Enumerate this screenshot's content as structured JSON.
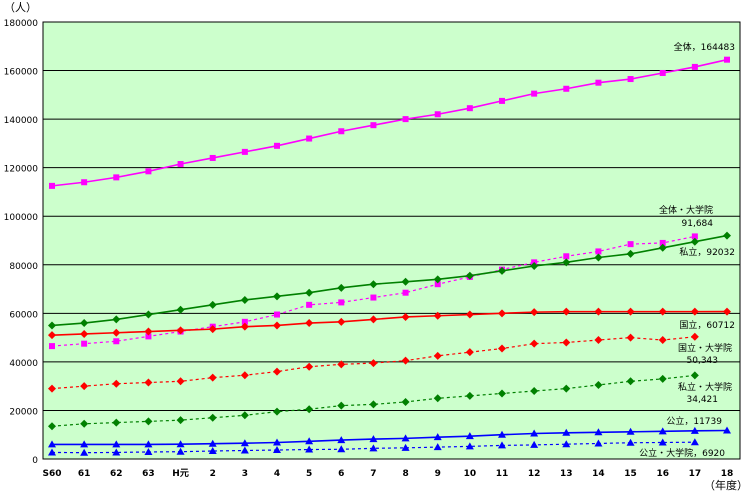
{
  "chart_data": {
    "type": "line",
    "unit_label": "（人）",
    "xlabel": "（年度）",
    "categories": [
      "S60",
      "61",
      "62",
      "63",
      "H元",
      "2",
      "3",
      "4",
      "5",
      "6",
      "7",
      "8",
      "9",
      "10",
      "11",
      "12",
      "13",
      "14",
      "15",
      "16",
      "17",
      "18"
    ],
    "ylim": [
      0,
      180000
    ],
    "yticks": [
      0,
      20000,
      40000,
      60000,
      80000,
      100000,
      120000,
      140000,
      160000,
      180000
    ],
    "grid": true,
    "plot_background": "#ccffcc",
    "series": [
      {
        "name": "全体",
        "color": "#ff00ff",
        "marker": "square",
        "dashed": false,
        "values": [
          112500,
          114000,
          116000,
          118500,
          121500,
          124000,
          126500,
          129000,
          132000,
          135000,
          137500,
          140000,
          142000,
          144500,
          147500,
          150500,
          152500,
          155000,
          156500,
          159000,
          161500,
          164483
        ]
      },
      {
        "name": "全体・大学院",
        "color": "#ff00ff",
        "marker": "square",
        "dashed": true,
        "values": [
          46500,
          47500,
          48500,
          50500,
          52500,
          54500,
          56500,
          59500,
          63500,
          64500,
          66500,
          68500,
          72000,
          75000,
          78000,
          81000,
          83500,
          85500,
          88500,
          89000,
          91684,
          null
        ]
      },
      {
        "name": "私立",
        "color": "#008000",
        "marker": "diamond",
        "dashed": false,
        "values": [
          55000,
          56000,
          57500,
          59500,
          61500,
          63500,
          65500,
          67000,
          68500,
          70500,
          72000,
          73000,
          74000,
          75500,
          77500,
          79500,
          81000,
          83000,
          84500,
          87000,
          89500,
          92032
        ]
      },
      {
        "name": "国立",
        "color": "#ff0000",
        "marker": "diamond",
        "dashed": false,
        "values": [
          51000,
          51500,
          52000,
          52500,
          53000,
          53500,
          54500,
          55000,
          56000,
          56500,
          57500,
          58500,
          59000,
          59500,
          60000,
          60500,
          60700,
          60700,
          60700,
          60700,
          60700,
          60712
        ]
      },
      {
        "name": "国立・大学院",
        "color": "#ff0000",
        "marker": "diamond",
        "dashed": true,
        "values": [
          29000,
          30000,
          31000,
          31500,
          32000,
          33500,
          34500,
          36000,
          38000,
          39000,
          39500,
          40500,
          42500,
          44000,
          45500,
          47500,
          48000,
          49000,
          50000,
          49000,
          50343,
          null
        ]
      },
      {
        "name": "私立・大学院",
        "color": "#008000",
        "marker": "diamond",
        "dashed": true,
        "values": [
          13500,
          14500,
          15000,
          15500,
          16000,
          17000,
          18000,
          19500,
          20500,
          22000,
          22500,
          23500,
          25000,
          26000,
          27000,
          28000,
          29000,
          30500,
          32000,
          33000,
          34421,
          null
        ]
      },
      {
        "name": "公立",
        "color": "#0000ff",
        "marker": "triangle",
        "dashed": false,
        "values": [
          6000,
          6000,
          6000,
          6000,
          6100,
          6300,
          6500,
          6800,
          7300,
          7800,
          8200,
          8500,
          9000,
          9400,
          10000,
          10500,
          10800,
          11000,
          11200,
          11400,
          11600,
          11739
        ]
      },
      {
        "name": "公立・大学院",
        "color": "#0000ff",
        "marker": "triangle",
        "dashed": true,
        "values": [
          2700,
          2600,
          2700,
          2900,
          3000,
          3300,
          3500,
          3700,
          3900,
          4000,
          4400,
          4600,
          4900,
          5200,
          5600,
          5800,
          6100,
          6400,
          6700,
          6800,
          6920,
          null
        ]
      }
    ],
    "annotations": [
      {
        "series": 0,
        "text": "全体，164483"
      },
      {
        "series": 1,
        "text": "全体・大学院",
        "text2": "91,684"
      },
      {
        "series": 2,
        "text": "私立，92032"
      },
      {
        "series": 3,
        "text": "国立，60712"
      },
      {
        "series": 4,
        "text": "国立・大学院",
        "text2": "50,343"
      },
      {
        "series": 5,
        "text": "私立・大学院",
        "text2": "34,421"
      },
      {
        "series": 6,
        "text": "公立，11739"
      },
      {
        "series": 7,
        "text": "公立・大学院，6920"
      }
    ]
  }
}
